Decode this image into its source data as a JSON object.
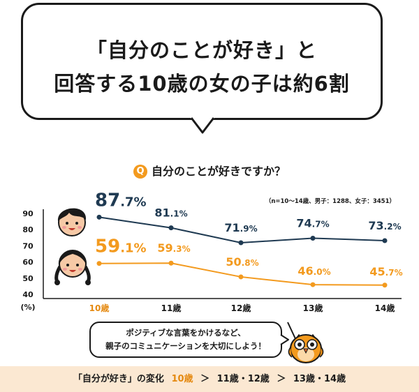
{
  "headline": {
    "line1": "「自分のことが好き」と",
    "line2": "回答する10歳の女の子は約6割"
  },
  "question": {
    "badge": "Q",
    "text": "自分のことが好きですか？"
  },
  "sample_note": "（n=10～14歳、男子：1288、女子：3451）",
  "tip": {
    "line1": "ポジティブな言葉をかけるなど、",
    "line2": "親子のコミュニケーションを大切にしよう！"
  },
  "footer": {
    "label": "「自分が好き」の変化",
    "age10": "10歳",
    "gt1": "＞",
    "mid": "11歳・12歳",
    "gt2": "＞",
    "end": "13歳・14歳"
  },
  "colors": {
    "boys": "#1f3a52",
    "girls": "#f39a1e",
    "accent_label": "#e58a12",
    "footer_bg": "#fbe8d2"
  },
  "icons": {
    "boy": "boy-face-icon",
    "girl": "girl-face-icon",
    "mascot": "owl-mascot-icon"
  },
  "chart_data": {
    "type": "line",
    "categories": [
      "10歳",
      "11歳",
      "12歳",
      "13歳",
      "14歳"
    ],
    "yticks": [
      "90",
      "80",
      "70",
      "60",
      "50",
      "40"
    ],
    "yunit": "(%)",
    "ylim": [
      40,
      90
    ],
    "grid": false,
    "series": [
      {
        "key": "boys",
        "values": [
          87.7,
          81.1,
          71.9,
          74.7,
          73.2
        ],
        "labels_int": [
          "87",
          "81",
          "71",
          "74",
          "73"
        ],
        "labels_dec": [
          ".7",
          ".1",
          ".9",
          ".7",
          ".2"
        ],
        "unit": "%"
      },
      {
        "key": "girls",
        "values": [
          59.1,
          59.3,
          50.8,
          46.0,
          45.7
        ],
        "labels_int": [
          "59",
          "59",
          "50",
          "46",
          "45"
        ],
        "labels_dec": [
          ".1",
          ".3",
          ".8",
          ".0",
          ".7"
        ],
        "unit": "%"
      }
    ]
  }
}
